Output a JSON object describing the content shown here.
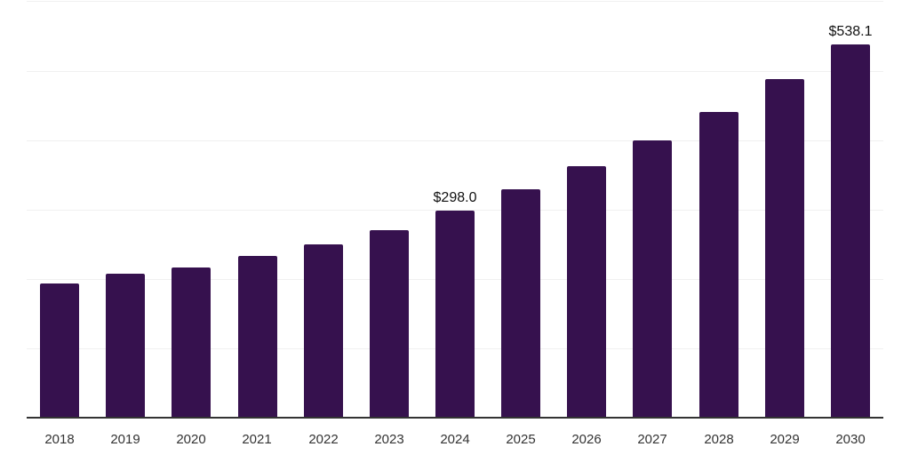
{
  "chart_data": {
    "type": "bar",
    "title": "",
    "xlabel": "",
    "ylabel": "",
    "categories": [
      "2018",
      "2019",
      "2020",
      "2021",
      "2022",
      "2023",
      "2024",
      "2025",
      "2026",
      "2027",
      "2028",
      "2029",
      "2030"
    ],
    "values": [
      192.9,
      207.9,
      216.2,
      233.3,
      250.3,
      270.5,
      298.0,
      329.0,
      362.0,
      399.9,
      440.1,
      487.3,
      538.1
    ],
    "data_labels": [
      {
        "category": "2024",
        "text": "$298.0"
      },
      {
        "category": "2030",
        "text": "$538.1"
      }
    ],
    "ylim": [
      0,
      600
    ],
    "grid": true,
    "grid_interval": 100,
    "legend": false,
    "colors": {
      "bar": "#36114E",
      "gridline": "#f0f0f0",
      "axis_line": "#333333",
      "tick_label": "#333333",
      "data_label": "#111111",
      "background": "#ffffff"
    }
  }
}
